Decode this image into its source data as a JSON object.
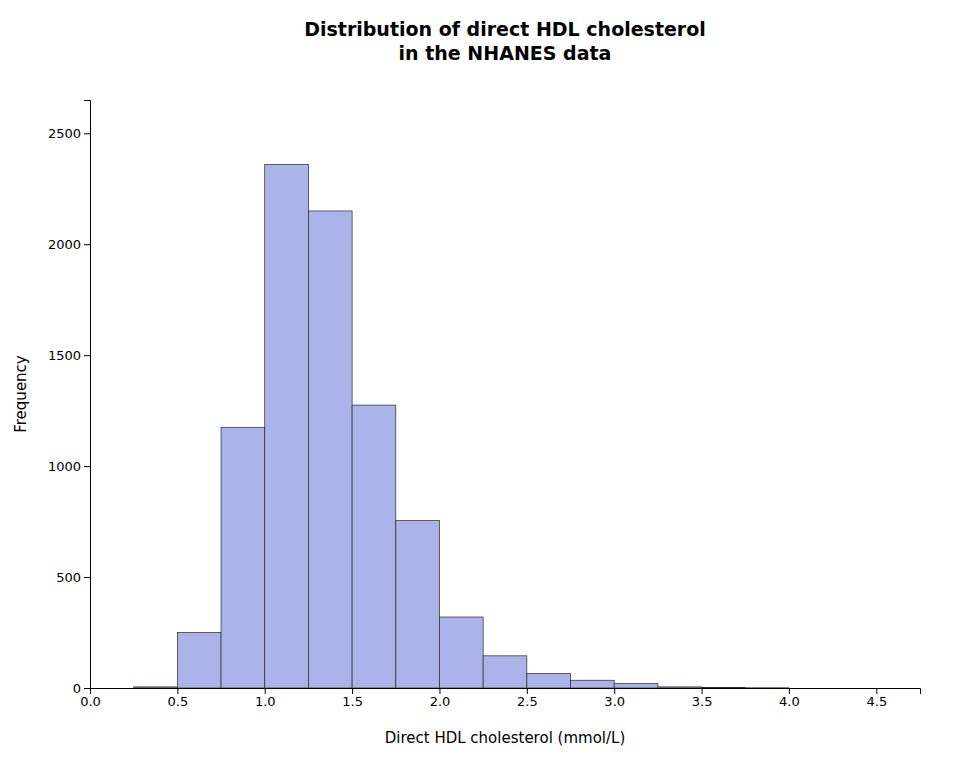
{
  "chart_data": {
    "type": "histogram",
    "title": "Distribution of direct HDL cholesterol\nin the NHANES data",
    "x_label": "Direct HDL cholesterol (mmol/L)",
    "y_label": "Frequency",
    "color": "#aab4e8",
    "bins": [
      0.0,
      0.25,
      0.5,
      0.75,
      1.0,
      1.25,
      1.5,
      1.75,
      2.0,
      2.25,
      2.5,
      2.75,
      3.0,
      3.25,
      3.5,
      3.75,
      4.0,
      4.25,
      4.5
    ],
    "values": [
      0,
      5,
      250,
      1175,
      2360,
      2150,
      1275,
      755,
      320,
      145,
      65,
      35,
      20,
      5,
      2,
      1,
      0,
      0
    ],
    "xlim": [
      0.0,
      4.75
    ],
    "ylim": [
      0,
      2650
    ],
    "xticks": [
      {
        "value": 0,
        "label": "0.0"
      },
      0.5,
      {
        "value": 1,
        "label": "1.0"
      },
      1.5,
      {
        "value": 2,
        "label": "2.0"
      },
      2.5,
      {
        "value": 3,
        "label": "3.0"
      },
      3.5,
      {
        "value": 4,
        "label": "4.0"
      },
      4.5
    ],
    "yticks": [
      0,
      500,
      1000,
      1500,
      2000,
      2500
    ],
    "grid": false
  }
}
